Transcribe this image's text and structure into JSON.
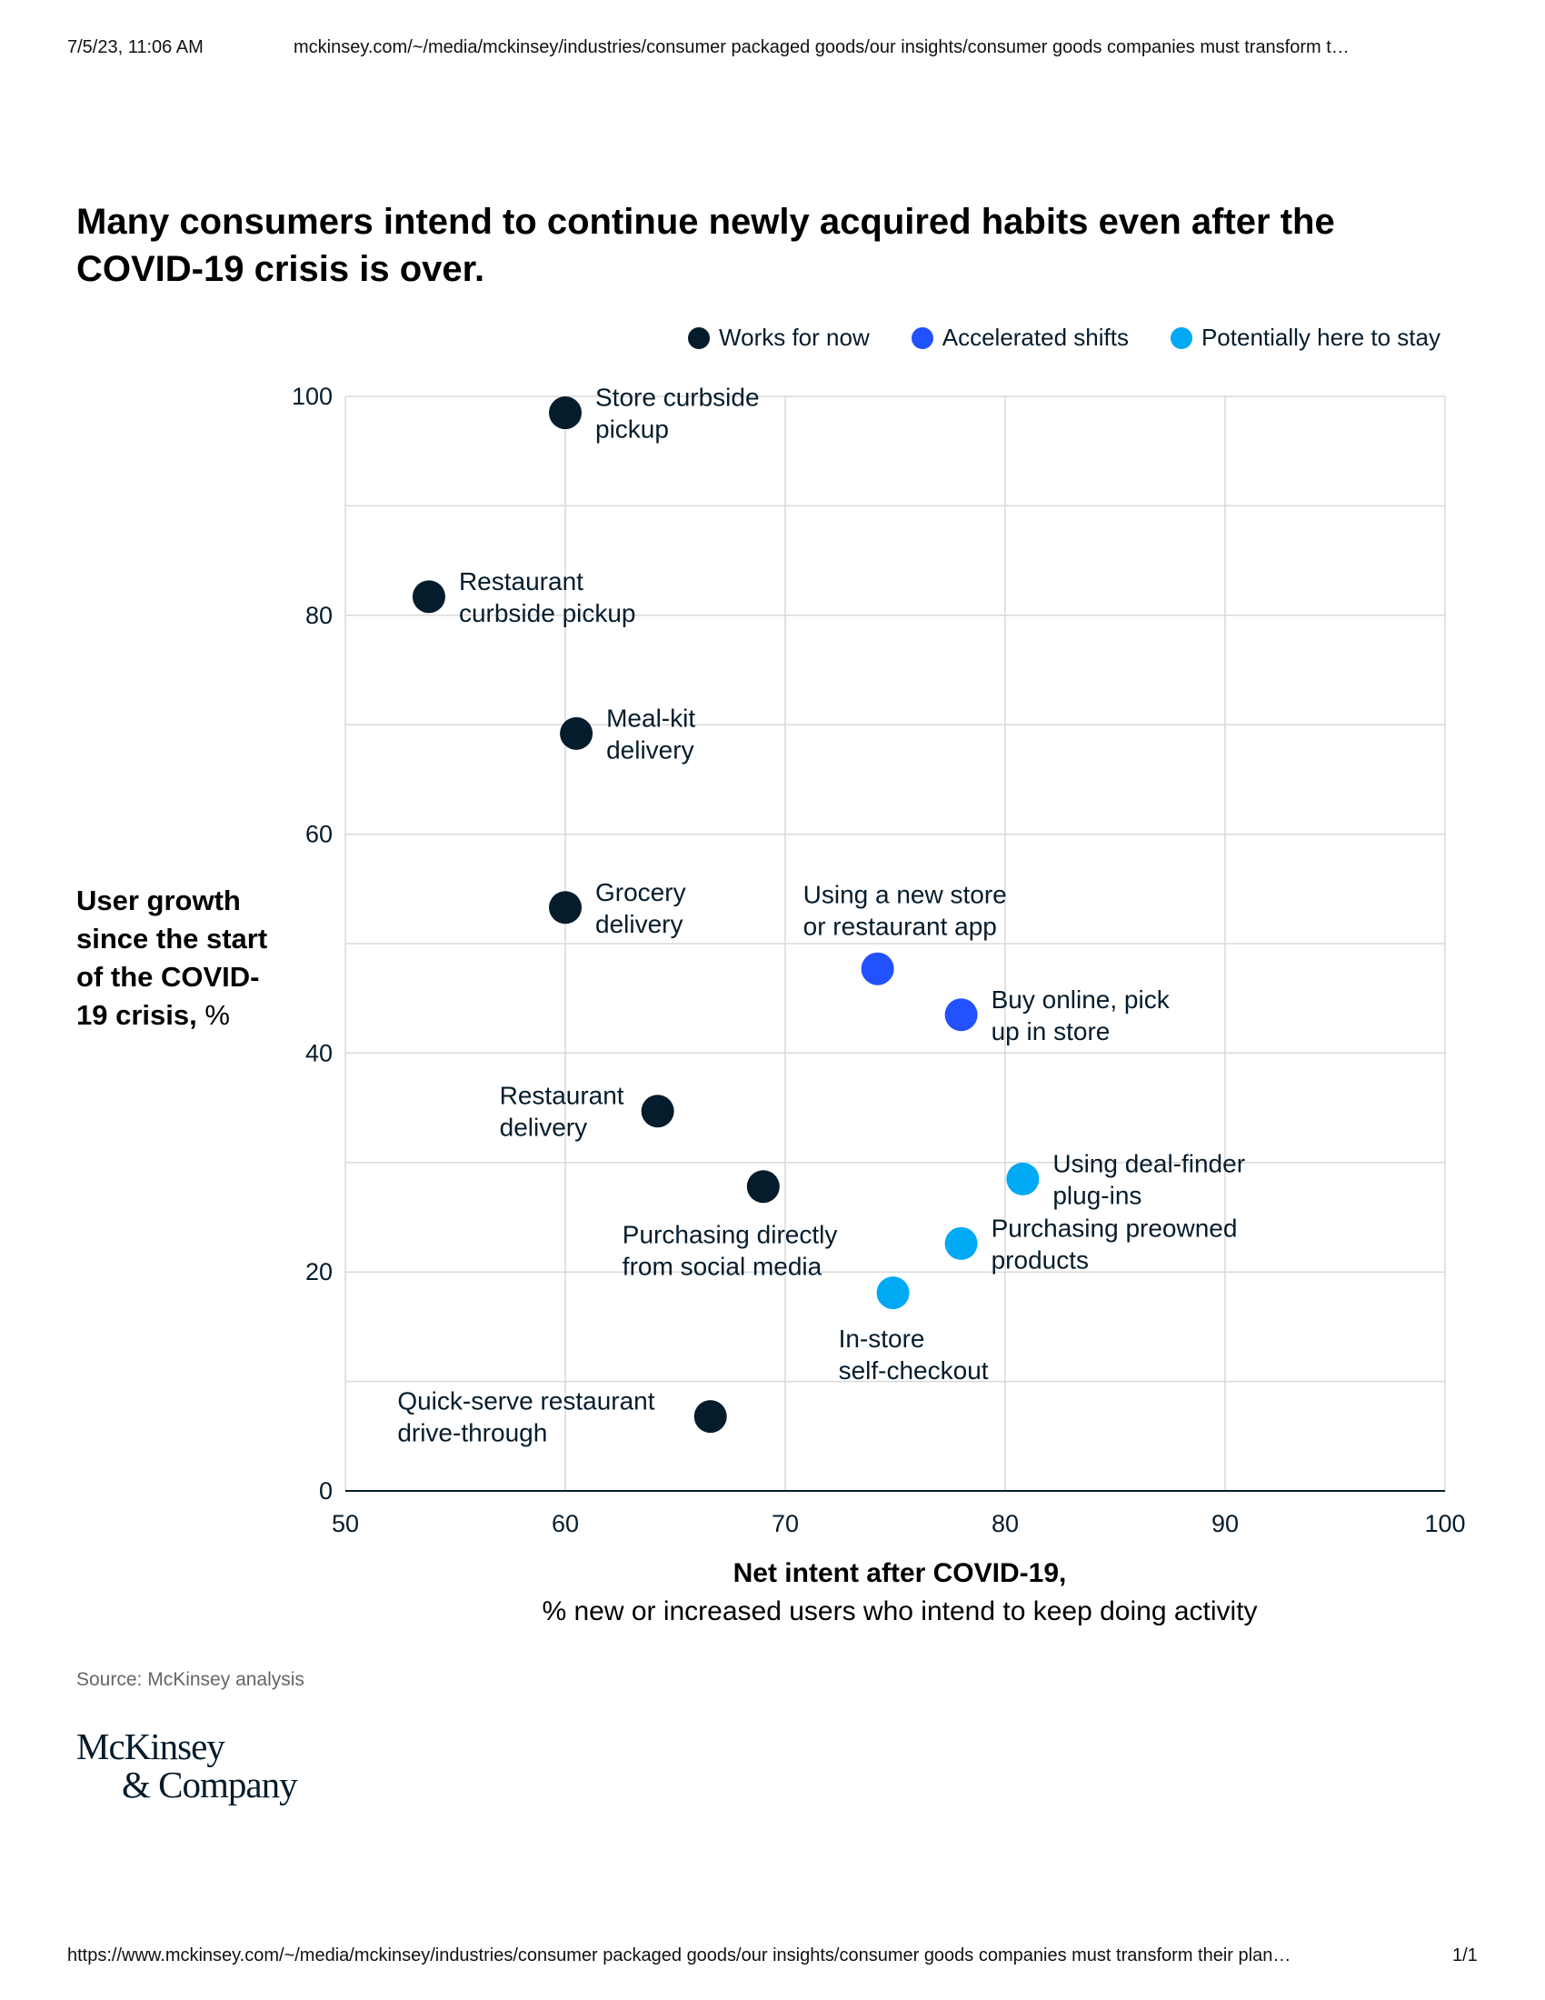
{
  "header": {
    "date": "7/5/23, 11:06 AM",
    "url": "mckinsey.com/~/media/mckinsey/industries/consumer packaged goods/our insights/consumer goods companies must transform t…"
  },
  "footer": {
    "url": "https://www.mckinsey.com/~/media/mckinsey/industries/consumer packaged goods/our insights/consumer goods companies must transform their plan…",
    "page": "1/1"
  },
  "source": "Source: McKinsey analysis",
  "logo": {
    "line1": "McKinsey",
    "line2": "& Company"
  },
  "colors": {
    "works": "#051c2c",
    "accelerated": "#2251ff",
    "stay": "#00a9f4",
    "grid": "#d9d9d9"
  },
  "chart_data": {
    "type": "scatter",
    "title": "Many consumers intend to continue newly acquired habits even after the COVID-19 crisis is over.",
    "xlabel": "Net intent after COVID-19,",
    "xlabel_sub": "% new or increased users who intend to keep doing activity",
    "ylabel": "User growth since the start of the COVID-19 crisis,",
    "ylabel_unit": "%",
    "xlim": [
      50,
      100
    ],
    "ylim": [
      0,
      100
    ],
    "x_ticks": [
      50,
      60,
      70,
      80,
      90,
      100
    ],
    "y_ticks": [
      0,
      20,
      40,
      60,
      80,
      100
    ],
    "grid": true,
    "legend_position": "top-right",
    "series": [
      {
        "name": "Works for now",
        "color": "#051c2c",
        "points": [
          {
            "label": [
              "Store curbside",
              "pickup"
            ],
            "x": 60,
            "y": 98.5,
            "label_side": "right"
          },
          {
            "label": [
              "Restaurant",
              "curbside pickup"
            ],
            "x": 53.8,
            "y": 81.7,
            "label_side": "right"
          },
          {
            "label": [
              "Meal-kit",
              "delivery"
            ],
            "x": 60.5,
            "y": 69.2,
            "label_side": "right"
          },
          {
            "label": [
              "Grocery",
              "delivery"
            ],
            "x": 60,
            "y": 53.3,
            "label_side": "right"
          },
          {
            "label": [
              "Restaurant",
              "delivery"
            ],
            "x": 64.2,
            "y": 34.7,
            "label_side": "left"
          },
          {
            "label": [
              "Purchasing directly",
              "from social media"
            ],
            "x": 69,
            "y": 27.8,
            "label_side": "below"
          },
          {
            "label": [
              "Quick-serve restaurant",
              "drive-through"
            ],
            "x": 66.6,
            "y": 6.8,
            "label_side": "left"
          }
        ]
      },
      {
        "name": "Accelerated shifts",
        "color": "#2251ff",
        "points": [
          {
            "label": [
              "Using a new store",
              "or restaurant app"
            ],
            "x": 74.2,
            "y": 47.7,
            "label_side": "above"
          },
          {
            "label": [
              "Buy online, pick",
              "up in store"
            ],
            "x": 78,
            "y": 43.5,
            "label_side": "right"
          }
        ]
      },
      {
        "name": "Potentially here to stay",
        "color": "#00a9f4",
        "points": [
          {
            "label": [
              "Using deal-finder",
              "plug-ins"
            ],
            "x": 80.8,
            "y": 28.5,
            "label_side": "right"
          },
          {
            "label": [
              "Purchasing preowned",
              "products"
            ],
            "x": 78,
            "y": 22.6,
            "label_side": "right"
          },
          {
            "label": [
              "In-store",
              "self-checkout"
            ],
            "x": 74.9,
            "y": 18.1,
            "label_side": "below"
          }
        ]
      }
    ]
  }
}
